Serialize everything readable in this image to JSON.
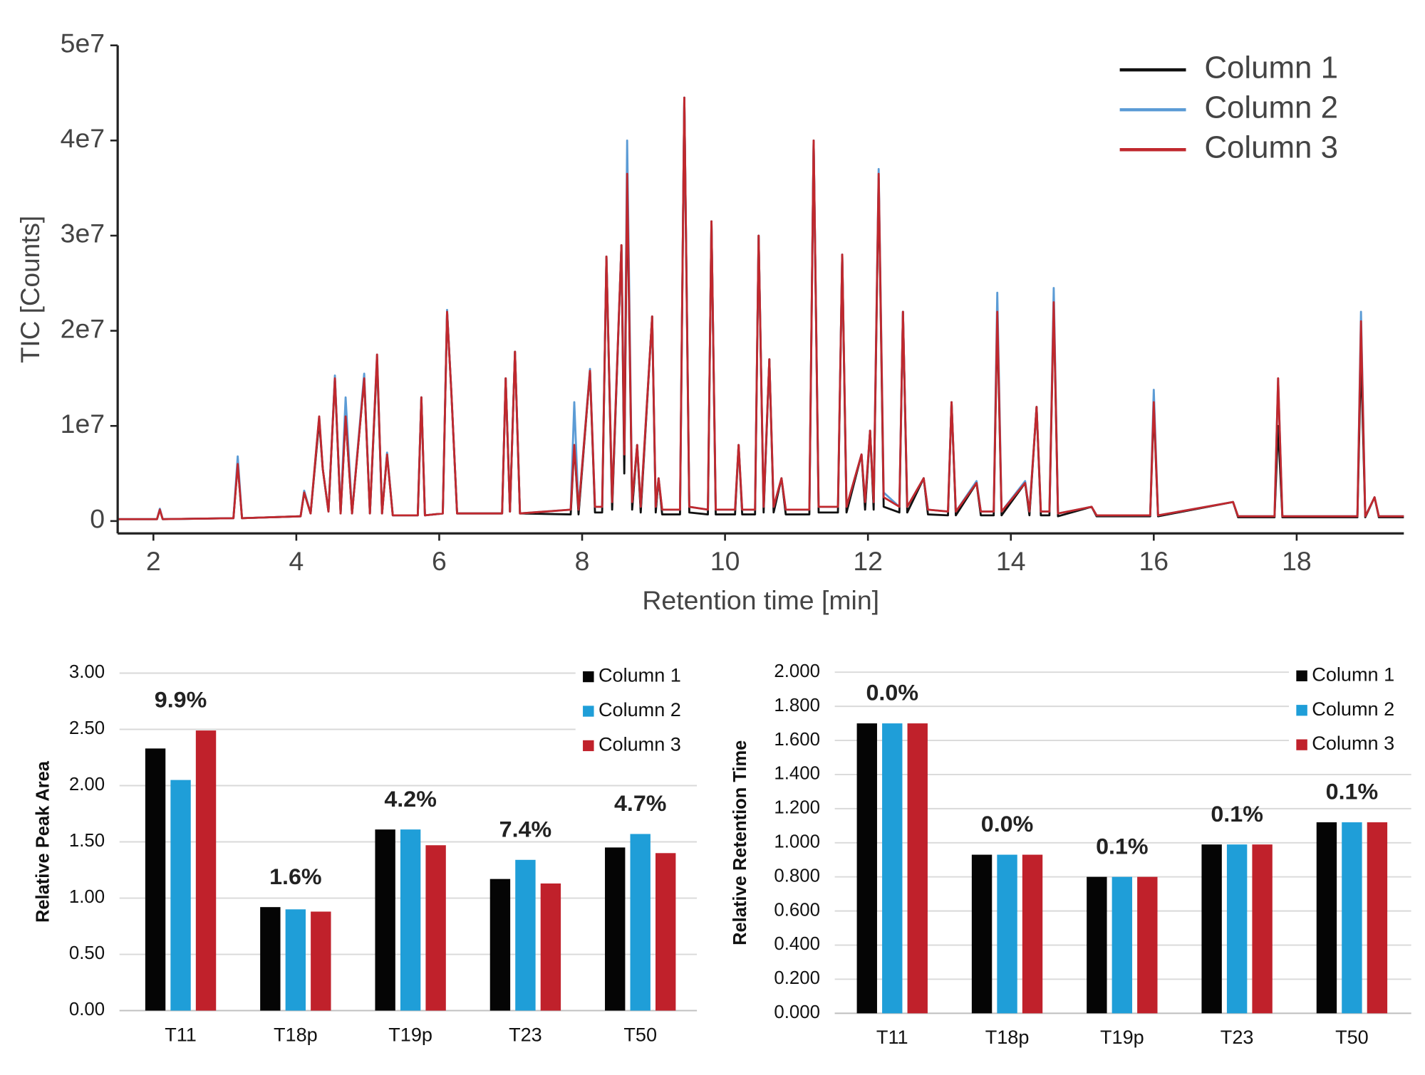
{
  "chart_data": [
    {
      "type": "line",
      "xlabel": "Retention time [min]",
      "ylabel": "TIC [Counts]",
      "legend": "upper right",
      "xlim": [
        1.5,
        19.5
      ],
      "xticks": [
        2,
        4,
        6,
        8,
        10,
        12,
        14,
        16,
        18
      ],
      "ylim": [
        -1300000,
        50000000
      ],
      "yticks": [
        {
          "value": 0,
          "label": "0"
        },
        {
          "value": 10000000,
          "label": "1e7"
        },
        {
          "value": 20000000,
          "label": "2e7"
        },
        {
          "value": 30000000,
          "label": "3e7"
        },
        {
          "value": 40000000,
          "label": "4e7"
        },
        {
          "value": 50000000,
          "label": "5e7"
        }
      ],
      "x": [
        1.5,
        2.05,
        2.09,
        2.13,
        3.12,
        3.18,
        3.24,
        4.06,
        4.11,
        4.2,
        4.32,
        4.37,
        4.45,
        4.54,
        4.62,
        4.69,
        4.78,
        4.95,
        5.03,
        5.13,
        5.2,
        5.27,
        5.35,
        5.7,
        5.75,
        5.8,
        6.05,
        6.11,
        6.17,
        6.25,
        6.88,
        6.93,
        6.99,
        7.06,
        7.13,
        7.84,
        7.89,
        7.95,
        8.11,
        8.18,
        8.28,
        8.34,
        8.42,
        8.55,
        8.59,
        8.63,
        8.7,
        8.77,
        8.82,
        8.98,
        9.03,
        9.07,
        9.12,
        9.37,
        9.43,
        9.5,
        9.76,
        9.81,
        9.87,
        10.14,
        10.19,
        10.24,
        10.42,
        10.47,
        10.54,
        10.62,
        10.68,
        10.79,
        10.85,
        11.18,
        11.24,
        11.31,
        11.58,
        11.64,
        11.7,
        11.91,
        11.96,
        12.03,
        12.08,
        12.15,
        12.22,
        12.44,
        12.49,
        12.55,
        12.78,
        12.84,
        13.12,
        13.17,
        13.23,
        13.52,
        13.58,
        13.76,
        13.81,
        13.87,
        14.2,
        14.26,
        14.36,
        14.42,
        14.54,
        14.6,
        14.66,
        15.13,
        15.2,
        15.95,
        16.0,
        16.06,
        17.11,
        17.18,
        17.69,
        17.74,
        17.8,
        18.85,
        18.9,
        18.96,
        19.09,
        19.15,
        19.5
      ],
      "series": [
        {
          "name": "Column 1",
          "color": "#111111",
          "values": [
            200000,
            200000,
            1200000,
            200000,
            300000,
            6000000,
            300000,
            500000,
            3000000,
            800000,
            10500000,
            5500000,
            1000000,
            15000000,
            800000,
            11000000,
            800000,
            15000000,
            800000,
            17000000,
            800000,
            7000000,
            600000,
            600000,
            13000000,
            600000,
            800000,
            22000000,
            13500000,
            800000,
            800000,
            15000000,
            1000000,
            17800000,
            800000,
            700000,
            8000000,
            700000,
            15800000,
            900000,
            900000,
            27800000,
            1200000,
            29000000,
            5000000,
            36000000,
            1200000,
            8000000,
            900000,
            21500000,
            900000,
            4500000,
            700000,
            700000,
            44500000,
            900000,
            700000,
            31500000,
            700000,
            700000,
            8000000,
            700000,
            700000,
            30000000,
            900000,
            17000000,
            900000,
            4500000,
            700000,
            700000,
            40000000,
            900000,
            900000,
            28000000,
            900000,
            7000000,
            1200000,
            9500000,
            1200000,
            36000000,
            1500000,
            900000,
            22000000,
            900000,
            4500000,
            700000,
            600000,
            12500000,
            600000,
            4000000,
            600000,
            600000,
            21500000,
            600000,
            4000000,
            600000,
            12000000,
            600000,
            600000,
            23000000,
            500000,
            1500000,
            500000,
            500000,
            12000000,
            500000,
            2000000,
            400000,
            400000,
            10000000,
            400000,
            400000,
            17500000,
            400000,
            2500000,
            400000,
            400000
          ]
        },
        {
          "name": "Column 2",
          "color": "#5b9bd5",
          "values": [
            200000,
            200000,
            1300000,
            200000,
            300000,
            6800000,
            300000,
            500000,
            3200000,
            800000,
            11000000,
            5500000,
            1000000,
            15300000,
            800000,
            13000000,
            800000,
            15500000,
            800000,
            17500000,
            800000,
            7200000,
            600000,
            600000,
            13000000,
            600000,
            800000,
            22200000,
            13500000,
            800000,
            800000,
            15000000,
            1000000,
            17800000,
            800000,
            1200000,
            12500000,
            1200000,
            16000000,
            1500000,
            1500000,
            27800000,
            2000000,
            29000000,
            8000000,
            40000000,
            2000000,
            8000000,
            1500000,
            21500000,
            1500000,
            4500000,
            1200000,
            1200000,
            44500000,
            1500000,
            1200000,
            31500000,
            1200000,
            1200000,
            8000000,
            1200000,
            1200000,
            30000000,
            1500000,
            17000000,
            1500000,
            4500000,
            1200000,
            1200000,
            40000000,
            1500000,
            1500000,
            28000000,
            1500000,
            7000000,
            2000000,
            9500000,
            2000000,
            37000000,
            3000000,
            1500000,
            22000000,
            1500000,
            4500000,
            1200000,
            1000000,
            12500000,
            1000000,
            4200000,
            1000000,
            1000000,
            24000000,
            1000000,
            4200000,
            1000000,
            12000000,
            1000000,
            1000000,
            24500000,
            800000,
            1500000,
            600000,
            600000,
            13800000,
            600000,
            2000000,
            500000,
            500000,
            15000000,
            500000,
            500000,
            22000000,
            500000,
            2500000,
            500000,
            500000
          ]
        },
        {
          "name": "Column 3",
          "color": "#c0282d",
          "values": [
            200000,
            200000,
            1200000,
            200000,
            300000,
            6000000,
            300000,
            500000,
            3000000,
            800000,
            11000000,
            5500000,
            1000000,
            15000000,
            800000,
            11000000,
            800000,
            15000000,
            800000,
            17500000,
            800000,
            7000000,
            600000,
            600000,
            13000000,
            600000,
            800000,
            22000000,
            13500000,
            800000,
            800000,
            15000000,
            1000000,
            17800000,
            800000,
            1200000,
            8000000,
            1200000,
            15800000,
            1500000,
            1500000,
            27800000,
            2000000,
            29000000,
            7000000,
            36500000,
            2000000,
            8000000,
            1500000,
            21500000,
            1500000,
            4500000,
            1200000,
            1200000,
            44500000,
            1500000,
            1200000,
            31500000,
            1200000,
            1200000,
            8000000,
            1200000,
            1200000,
            30000000,
            1500000,
            17000000,
            1500000,
            4500000,
            1200000,
            1200000,
            40000000,
            1500000,
            1500000,
            28000000,
            1500000,
            7000000,
            2000000,
            9500000,
            2000000,
            36500000,
            2500000,
            1500000,
            22000000,
            1500000,
            4500000,
            1200000,
            1000000,
            12500000,
            1000000,
            4000000,
            1000000,
            1000000,
            22000000,
            1000000,
            4000000,
            1000000,
            12000000,
            1000000,
            1000000,
            23000000,
            800000,
            1500000,
            600000,
            600000,
            12500000,
            600000,
            2000000,
            500000,
            500000,
            15000000,
            500000,
            500000,
            21000000,
            500000,
            2500000,
            500000,
            500000
          ]
        }
      ]
    },
    {
      "type": "bar",
      "ylabel": "Relative Peak Area",
      "legend": "upper right",
      "grid": true,
      "categories": [
        "T11",
        "T18p",
        "T19p",
        "T23",
        "T50"
      ],
      "annotations": [
        "9.9%",
        "1.6%",
        "4.2%",
        "7.4%",
        "4.7%"
      ],
      "ylim": [
        0,
        3
      ],
      "yticks": [
        {
          "value": 0,
          "label": "0.00"
        },
        {
          "value": 0.5,
          "label": "0.50"
        },
        {
          "value": 1,
          "label": "1.00"
        },
        {
          "value": 1.5,
          "label": "1.50"
        },
        {
          "value": 2,
          "label": "2.00"
        },
        {
          "value": 2.5,
          "label": "2.50"
        },
        {
          "value": 3,
          "label": "3.00"
        }
      ],
      "series": [
        {
          "name": "Column 1",
          "color": "#050505",
          "values": [
            2.33,
            0.92,
            1.61,
            1.17,
            1.45
          ]
        },
        {
          "name": "Column 2",
          "color": "#1f9ed8",
          "values": [
            2.05,
            0.9,
            1.61,
            1.34,
            1.57
          ]
        },
        {
          "name": "Column 3",
          "color": "#c0212b",
          "values": [
            2.49,
            0.88,
            1.47,
            1.13,
            1.4
          ]
        }
      ]
    },
    {
      "type": "bar",
      "ylabel": "Relative Retention Time",
      "legend": "upper right",
      "grid": true,
      "categories": [
        "T11",
        "T18p",
        "T19p",
        "T23",
        "T50"
      ],
      "annotations": [
        "0.0%",
        "0.0%",
        "0.1%",
        "0.1%",
        "0.1%"
      ],
      "ylim": [
        0,
        2
      ],
      "yticks": [
        {
          "value": 0,
          "label": "0.000"
        },
        {
          "value": 0.2,
          "label": "0.200"
        },
        {
          "value": 0.4,
          "label": "0.400"
        },
        {
          "value": 0.6,
          "label": "0.600"
        },
        {
          "value": 0.8,
          "label": "0.800"
        },
        {
          "value": 1,
          "label": "1.000"
        },
        {
          "value": 1.2,
          "label": "1.200"
        },
        {
          "value": 1.4,
          "label": "1.400"
        },
        {
          "value": 1.6,
          "label": "1.600"
        },
        {
          "value": 1.8,
          "label": "1.800"
        },
        {
          "value": 2,
          "label": "2.000"
        }
      ],
      "series": [
        {
          "name": "Column 1",
          "color": "#050505",
          "values": [
            1.7,
            0.93,
            0.8,
            0.99,
            1.12
          ]
        },
        {
          "name": "Column 2",
          "color": "#1f9ed8",
          "values": [
            1.7,
            0.93,
            0.8,
            0.99,
            1.12
          ]
        },
        {
          "name": "Column 3",
          "color": "#c0212b",
          "values": [
            1.7,
            0.93,
            0.8,
            0.99,
            1.12
          ]
        }
      ]
    }
  ]
}
